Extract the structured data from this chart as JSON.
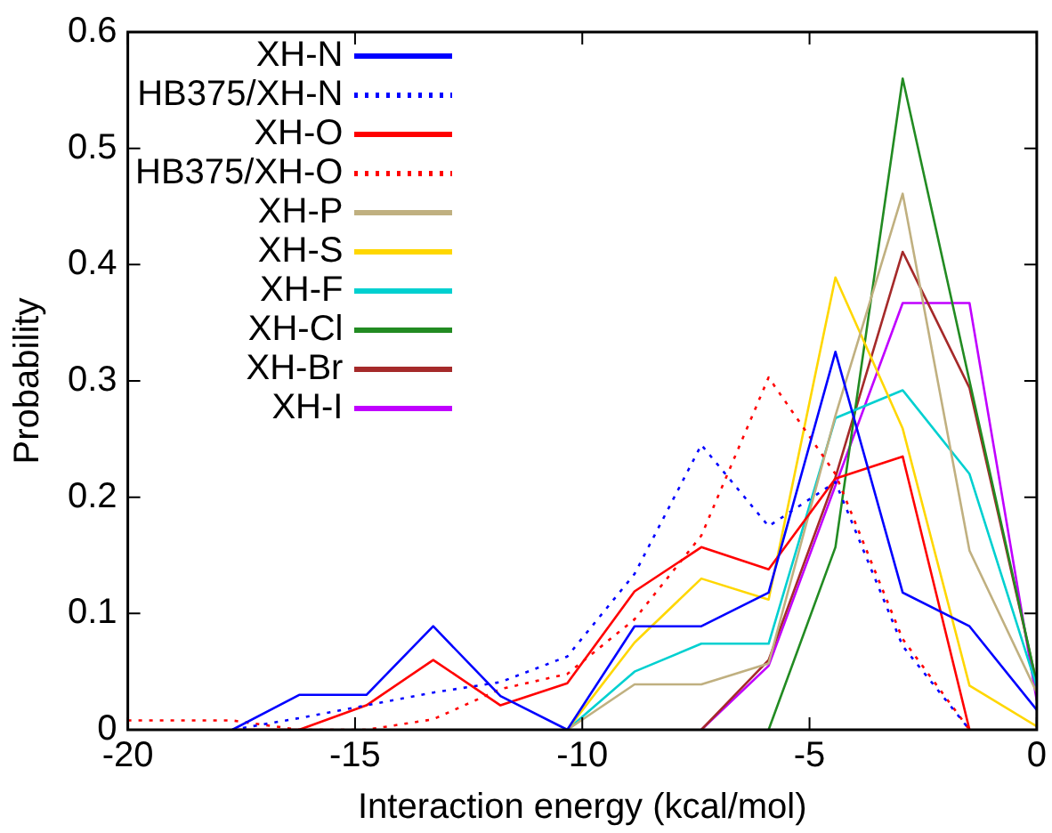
{
  "chart_data": {
    "type": "line",
    "xlabel": "Interaction energy (kcal/mol)",
    "ylabel": "Probability",
    "xlim": [
      -20,
      0
    ],
    "xticks": [
      -20,
      -15,
      -10,
      -5,
      0
    ],
    "ylim": [
      0,
      0.6
    ],
    "yticks": [
      0,
      0.1,
      0.2,
      0.3,
      0.4,
      0.5,
      0.6
    ],
    "grid": false,
    "legend": "top left",
    "marker": "none",
    "line_style": "solid",
    "series": [
      {
        "name": "XH-N",
        "color": "#0000ff",
        "x": [
          -17.7,
          -16.23,
          -14.75,
          -13.28,
          -11.8,
          -10.33,
          -8.85,
          -7.38,
          -5.9,
          -4.43,
          -2.95,
          -1.48,
          0
        ],
        "values": [
          0,
          0.03,
          0.03,
          0.089,
          0.029,
          0,
          0.089,
          0.089,
          0.118,
          0.325,
          0.118,
          0.089,
          0.017
        ]
      },
      {
        "name": "HB375/XH-N",
        "color": "#0000ff",
        "line_style": "dotted",
        "x": [
          -17.7,
          -16.23,
          -14.75,
          -13.28,
          -11.8,
          -10.33,
          -8.85,
          -7.38,
          -5.9,
          -4.43,
          -2.95,
          -1.48
        ],
        "values": [
          0,
          0.01,
          0.021,
          0.032,
          0.041,
          0.063,
          0.134,
          0.245,
          0.175,
          0.213,
          0.072,
          0
        ]
      },
      {
        "name": "XH-O",
        "color": "#ff0000",
        "x": [
          -17.7,
          -16.23,
          -14.75,
          -13.28,
          -11.8,
          -10.33,
          -8.85,
          -7.38,
          -5.9,
          -4.43,
          -2.95,
          -1.48
        ],
        "values": [
          0,
          0,
          0.021,
          0.06,
          0.021,
          0.04,
          0.119,
          0.157,
          0.138,
          0.216,
          0.235,
          0
        ]
      },
      {
        "name": "HB375/XH-O",
        "color": "#ff0000",
        "line_style": "dotted",
        "x": [
          -20,
          -19.18,
          -17.7,
          -16.23,
          -14.75,
          -13.28,
          -11.8,
          -10.33,
          -8.85,
          -7.38,
          -5.9,
          -4.43,
          -2.95,
          -1.48
        ],
        "values": [
          0.008,
          0.008,
          0.008,
          0,
          0,
          0.009,
          0.035,
          0.048,
          0.095,
          0.167,
          0.303,
          0.22,
          0.078,
          0
        ]
      },
      {
        "name": "XH-P",
        "color": "#c0b080",
        "x": [
          -10.33,
          -8.85,
          -7.38,
          -5.9,
          -4.43,
          -2.95,
          -1.48,
          0
        ],
        "values": [
          0,
          0.039,
          0.039,
          0.057,
          0.27,
          0.461,
          0.154,
          0.032
        ]
      },
      {
        "name": "XH-S",
        "color": "#ffd700",
        "x": [
          -10.33,
          -8.85,
          -7.38,
          -5.9,
          -4.43,
          -2.95,
          -1.48,
          0
        ],
        "values": [
          0,
          0.075,
          0.13,
          0.112,
          0.389,
          0.259,
          0.038,
          0.003
        ]
      },
      {
        "name": "XH-F",
        "color": "#00d0d0",
        "x": [
          -10.33,
          -8.85,
          -7.38,
          -5.9,
          -4.43,
          -2.95,
          -1.48,
          0
        ],
        "values": [
          0,
          0.05,
          0.074,
          0.074,
          0.268,
          0.292,
          0.22,
          0.037
        ]
      },
      {
        "name": "XH-Cl",
        "color": "#228b22",
        "x": [
          -5.9,
          -4.43,
          -2.95,
          -1.48,
          0
        ],
        "values": [
          0,
          0.157,
          0.56,
          0.3,
          0.04
        ]
      },
      {
        "name": "XH-Br",
        "color": "#a52a2a",
        "x": [
          -7.38,
          -5.9,
          -4.43,
          -2.95,
          -1.48,
          0
        ],
        "values": [
          0,
          0.06,
          0.217,
          0.411,
          0.294,
          0.04
        ]
      },
      {
        "name": "XH-I",
        "color": "#c000ff",
        "x": [
          -7.38,
          -5.9,
          -4.43,
          -2.95,
          -1.48,
          0
        ],
        "values": [
          0,
          0.055,
          0.21,
          0.367,
          0.367,
          0.025
        ]
      }
    ]
  }
}
